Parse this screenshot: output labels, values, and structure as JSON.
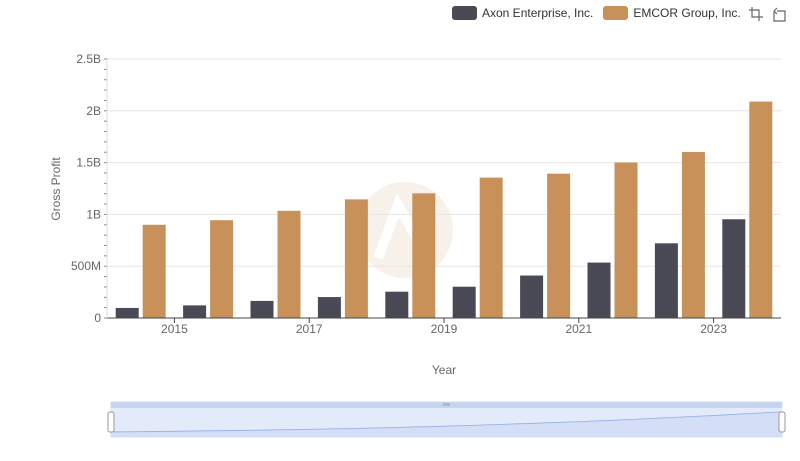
{
  "legend": {
    "items": [
      {
        "label": "Axon Enterprise, Inc.",
        "color": "#4a4a56"
      },
      {
        "label": "EMCOR Group, Inc.",
        "color": "#c8915a"
      }
    ]
  },
  "toolbar": {
    "icons": [
      "zoom-icon",
      "restore-icon"
    ]
  },
  "chart_data": {
    "type": "bar",
    "xlabel": "Year",
    "ylabel": "Gross Profit",
    "ylim": [
      0,
      2500000000
    ],
    "yticks": [
      0,
      500000000,
      1000000000,
      1500000000,
      2000000000,
      2500000000
    ],
    "ytick_labels": [
      "0",
      "500M",
      "1B",
      "1.5B",
      "2B",
      "2.5B"
    ],
    "categories": [
      "2014",
      "2015",
      "2016",
      "2017",
      "2018",
      "2019",
      "2020",
      "2021",
      "2022",
      "2023"
    ],
    "xtick_labels": [
      "2015",
      "2017",
      "2019",
      "2021",
      "2023"
    ],
    "grid": true,
    "legend_position": "top-right",
    "series": [
      {
        "name": "Axon Enterprise, Inc.",
        "color": "#4a4a56",
        "values": [
          97000000,
          122000000,
          165000000,
          202000000,
          254000000,
          302000000,
          410000000,
          535000000,
          721000000,
          953000000
        ]
      },
      {
        "name": "EMCOR Group, Inc.",
        "color": "#c8915a",
        "values": [
          900000000,
          944000000,
          1035000000,
          1145000000,
          1203000000,
          1355000000,
          1393000000,
          1501000000,
          1603000000,
          2089000000
        ]
      }
    ]
  }
}
